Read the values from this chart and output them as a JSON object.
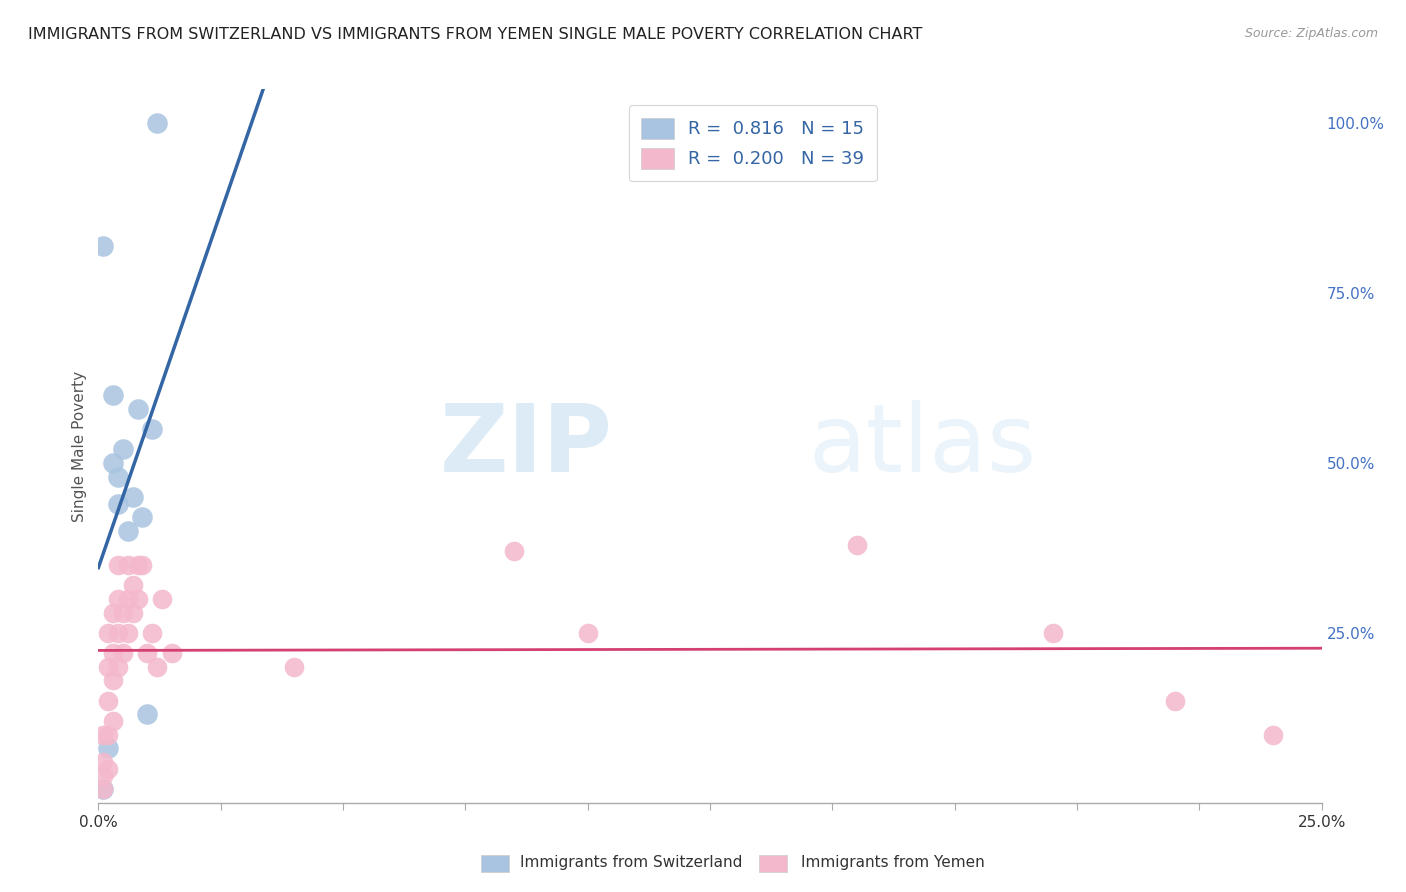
{
  "title": "IMMIGRANTS FROM SWITZERLAND VS IMMIGRANTS FROM YEMEN SINGLE MALE POVERTY CORRELATION CHART",
  "source": "Source: ZipAtlas.com",
  "ylabel": "Single Male Poverty",
  "r_switzerland": 0.816,
  "n_switzerland": 15,
  "r_yemen": 0.2,
  "n_yemen": 39,
  "switzerland_color": "#a8c4e0",
  "yemen_color": "#f4b8cc",
  "trendline_switzerland_color": "#3465a4",
  "trendline_yemen_color": "#d44070",
  "watermark_zip": "ZIP",
  "watermark_atlas": "atlas",
  "xlim": [
    0.0,
    0.25
  ],
  "ylim": [
    0.0,
    1.05
  ],
  "right_ytick_color": "#4472c4",
  "legend_text_color": "#333333",
  "legend_value_color": "#3465a4",
  "switzerland_x": [
    0.001,
    0.001,
    0.002,
    0.003,
    0.003,
    0.004,
    0.004,
    0.005,
    0.006,
    0.007,
    0.008,
    0.009,
    0.01,
    0.011,
    0.012
  ],
  "switzerland_y": [
    0.02,
    0.82,
    0.08,
    0.6,
    0.5,
    0.44,
    0.48,
    0.52,
    0.4,
    0.45,
    0.58,
    0.42,
    0.13,
    0.55,
    1.0
  ],
  "yemen_x": [
    0.001,
    0.001,
    0.001,
    0.001,
    0.002,
    0.002,
    0.002,
    0.002,
    0.002,
    0.003,
    0.003,
    0.003,
    0.003,
    0.004,
    0.004,
    0.004,
    0.004,
    0.005,
    0.005,
    0.006,
    0.006,
    0.006,
    0.007,
    0.007,
    0.008,
    0.008,
    0.009,
    0.01,
    0.011,
    0.012,
    0.013,
    0.015,
    0.04,
    0.085,
    0.1,
    0.155,
    0.195,
    0.22,
    0.24
  ],
  "yemen_y": [
    0.02,
    0.04,
    0.06,
    0.1,
    0.05,
    0.1,
    0.15,
    0.2,
    0.25,
    0.12,
    0.18,
    0.22,
    0.28,
    0.2,
    0.25,
    0.3,
    0.35,
    0.22,
    0.28,
    0.25,
    0.3,
    0.35,
    0.28,
    0.32,
    0.3,
    0.35,
    0.35,
    0.22,
    0.25,
    0.2,
    0.3,
    0.22,
    0.2,
    0.37,
    0.25,
    0.38,
    0.25,
    0.15,
    0.1
  ]
}
